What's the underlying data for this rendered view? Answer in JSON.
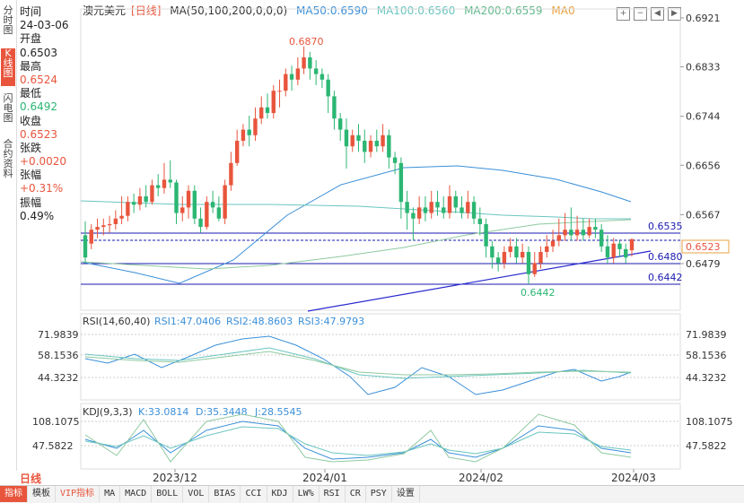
{
  "left_tabs": [
    "分时图",
    "K线图",
    "闪电图",
    "合约资料"
  ],
  "info": {
    "time_label": "时间",
    "time_value": "24-03-06",
    "open_label": "开盘",
    "open_value": "0.6503",
    "high_label": "最高",
    "high_value": "0.6524",
    "low_label": "最低",
    "low_value": "0.6492",
    "close_label": "收盘",
    "close_value": "0.6523",
    "change_label": "张跌",
    "change_value": "+0.0020",
    "pct_label": "张幅",
    "pct_value": "+0.31%",
    "amp_label": "振幅",
    "amp_value": "0.49%"
  },
  "legend": {
    "name": "澳元美元",
    "period": "[日线]",
    "ma_label": "MA(50,100,200,0,0,0)",
    "ma50": "MA50:0.6590",
    "ma100": "MA100:0.6560",
    "ma200": "MA200:0.6559",
    "ma0": "MA0"
  },
  "colors": {
    "up": "#e8553c",
    "down": "#2bb673",
    "ma50": "#3a8fd8",
    "ma100": "#6ac5c0",
    "ma200": "#8ec9a0",
    "trend": "#2a2ad0"
  },
  "chart_data": {
    "type": "candlestick",
    "price_axis": [
      "0.6921",
      "0.6833",
      "0.6744",
      "0.6656",
      "0.6567",
      "0.6479"
    ],
    "price_levels": [
      "0.6535",
      "0.6480",
      "0.6442"
    ],
    "current_price": "0.6523",
    "high_marker": "0.6870",
    "low_marker": "0.6442",
    "x_labels": [
      "2023/12",
      "2024/01",
      "2024/02",
      "2024/03"
    ],
    "candles": [
      [
        0.653,
        0.649,
        0.6555,
        0.648
      ],
      [
        0.6515,
        0.654,
        0.655,
        0.6505
      ],
      [
        0.654,
        0.6545,
        0.656,
        0.6525
      ],
      [
        0.6545,
        0.6548,
        0.656,
        0.653
      ],
      [
        0.6548,
        0.655,
        0.6565,
        0.6535
      ],
      [
        0.655,
        0.656,
        0.6575,
        0.654
      ],
      [
        0.656,
        0.6565,
        0.66,
        0.655
      ],
      [
        0.6565,
        0.659,
        0.66,
        0.6555
      ],
      [
        0.659,
        0.6585,
        0.6605,
        0.657
      ],
      [
        0.6585,
        0.66,
        0.6615,
        0.6575
      ],
      [
        0.66,
        0.659,
        0.662,
        0.658
      ],
      [
        0.659,
        0.662,
        0.663,
        0.6585
      ],
      [
        0.662,
        0.6615,
        0.664,
        0.66
      ],
      [
        0.6615,
        0.663,
        0.666,
        0.6605
      ],
      [
        0.663,
        0.6625,
        0.6665,
        0.6615
      ],
      [
        0.6625,
        0.657,
        0.663,
        0.655
      ],
      [
        0.657,
        0.658,
        0.66,
        0.6555
      ],
      [
        0.658,
        0.661,
        0.662,
        0.656
      ],
      [
        0.661,
        0.656,
        0.662,
        0.655
      ],
      [
        0.656,
        0.6545,
        0.658,
        0.6535
      ],
      [
        0.6545,
        0.659,
        0.66,
        0.654
      ],
      [
        0.659,
        0.658,
        0.661,
        0.657
      ],
      [
        0.658,
        0.656,
        0.66,
        0.6555
      ],
      [
        0.656,
        0.662,
        0.663,
        0.655
      ],
      [
        0.662,
        0.666,
        0.668,
        0.661
      ],
      [
        0.666,
        0.67,
        0.672,
        0.6655
      ],
      [
        0.67,
        0.672,
        0.673,
        0.669
      ],
      [
        0.672,
        0.671,
        0.6745,
        0.669
      ],
      [
        0.671,
        0.674,
        0.676,
        0.67
      ],
      [
        0.674,
        0.676,
        0.678,
        0.673
      ],
      [
        0.676,
        0.675,
        0.6785,
        0.674
      ],
      [
        0.675,
        0.679,
        0.68,
        0.674
      ],
      [
        0.679,
        0.679,
        0.681,
        0.676
      ],
      [
        0.679,
        0.682,
        0.683,
        0.678
      ],
      [
        0.682,
        0.681,
        0.6835,
        0.679
      ],
      [
        0.681,
        0.683,
        0.685,
        0.68
      ],
      [
        0.683,
        0.685,
        0.687,
        0.682
      ],
      [
        0.685,
        0.683,
        0.686,
        0.681
      ],
      [
        0.683,
        0.682,
        0.6845,
        0.68
      ],
      [
        0.682,
        0.681,
        0.683,
        0.6795
      ],
      [
        0.681,
        0.678,
        0.682,
        0.675
      ],
      [
        0.678,
        0.674,
        0.679,
        0.672
      ],
      [
        0.674,
        0.672,
        0.675,
        0.67
      ],
      [
        0.672,
        0.669,
        0.674,
        0.665
      ],
      [
        0.669,
        0.671,
        0.672,
        0.668
      ],
      [
        0.671,
        0.67,
        0.673,
        0.668
      ],
      [
        0.67,
        0.668,
        0.672,
        0.666
      ],
      [
        0.668,
        0.67,
        0.671,
        0.667
      ],
      [
        0.67,
        0.669,
        0.672,
        0.668
      ],
      [
        0.669,
        0.671,
        0.673,
        0.668
      ],
      [
        0.671,
        0.667,
        0.672,
        0.665
      ],
      [
        0.667,
        0.666,
        0.668,
        0.664
      ],
      [
        0.666,
        0.659,
        0.667,
        0.656
      ],
      [
        0.659,
        0.657,
        0.661,
        0.654
      ],
      [
        0.657,
        0.656,
        0.658,
        0.652
      ],
      [
        0.656,
        0.658,
        0.66,
        0.655
      ],
      [
        0.658,
        0.657,
        0.66,
        0.6555
      ],
      [
        0.657,
        0.659,
        0.661,
        0.656
      ],
      [
        0.659,
        0.658,
        0.661,
        0.6565
      ],
      [
        0.658,
        0.657,
        0.66,
        0.656
      ],
      [
        0.657,
        0.66,
        0.662,
        0.656
      ],
      [
        0.66,
        0.658,
        0.661,
        0.657
      ],
      [
        0.658,
        0.657,
        0.66,
        0.656
      ],
      [
        0.657,
        0.659,
        0.661,
        0.656
      ],
      [
        0.659,
        0.656,
        0.66,
        0.655
      ],
      [
        0.656,
        0.655,
        0.658,
        0.653
      ],
      [
        0.655,
        0.651,
        0.656,
        0.649
      ],
      [
        0.651,
        0.649,
        0.652,
        0.647
      ],
      [
        0.649,
        0.648,
        0.65,
        0.6465
      ],
      [
        0.648,
        0.65,
        0.651,
        0.647
      ],
      [
        0.65,
        0.651,
        0.6525,
        0.649
      ],
      [
        0.651,
        0.649,
        0.6525,
        0.648
      ],
      [
        0.649,
        0.65,
        0.6515,
        0.648
      ],
      [
        0.65,
        0.646,
        0.651,
        0.6442
      ],
      [
        0.646,
        0.648,
        0.65,
        0.6455
      ],
      [
        0.648,
        0.65,
        0.651,
        0.647
      ],
      [
        0.65,
        0.651,
        0.653,
        0.649
      ],
      [
        0.651,
        0.652,
        0.654,
        0.65
      ],
      [
        0.652,
        0.653,
        0.656,
        0.651
      ],
      [
        0.653,
        0.654,
        0.657,
        0.652
      ],
      [
        0.654,
        0.653,
        0.658,
        0.652
      ],
      [
        0.653,
        0.654,
        0.6565,
        0.652
      ],
      [
        0.654,
        0.653,
        0.656,
        0.652
      ],
      [
        0.653,
        0.6545,
        0.656,
        0.6525
      ],
      [
        0.6545,
        0.654,
        0.656,
        0.6525
      ],
      [
        0.654,
        0.651,
        0.655,
        0.65
      ],
      [
        0.651,
        0.649,
        0.653,
        0.648
      ],
      [
        0.649,
        0.6515,
        0.6525,
        0.648
      ],
      [
        0.6515,
        0.6505,
        0.652,
        0.649
      ],
      [
        0.6505,
        0.649,
        0.6515,
        0.648
      ],
      [
        0.6503,
        0.6523,
        0.6524,
        0.6492
      ]
    ],
    "rsi": {
      "label": "RSI(14,60,40)",
      "rsi1": "RSI1:47.0406",
      "rsi2": "RSI2:48.8603",
      "rsi3": "RSI3:47.9793",
      "axis": [
        "71.9839",
        "58.1536",
        "44.3232"
      ]
    },
    "kdj": {
      "label": "KDJ(9,3,3)",
      "k": "K:33.0814",
      "d": "D:35.3448",
      "j": "J:28.5545",
      "axis": [
        "108.1075",
        "47.5822"
      ]
    }
  },
  "bottom": {
    "period": "日线",
    "tabs": [
      "指标",
      "模板",
      "VIP指标",
      "MA",
      "MACD",
      "BOLL",
      "VOL",
      "BIAS",
      "CCI",
      "KDJ",
      "LW%",
      "RSI",
      "CR",
      "PSY",
      "设置"
    ]
  }
}
